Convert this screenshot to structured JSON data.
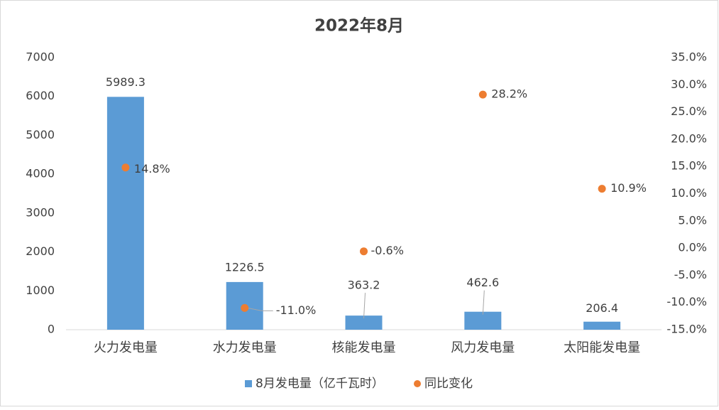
{
  "chart_data": {
    "type": "bar",
    "title": "2022年8月",
    "categories": [
      "火力发电量",
      "水力发电量",
      "核能发电量",
      "风力发电量",
      "太阳能发电量"
    ],
    "series": [
      {
        "name": "8月发电量（亿千瓦时）",
        "color": "#5b9bd5",
        "values": [
          5989.3,
          1226.5,
          363.2,
          462.6,
          206.4
        ]
      },
      {
        "name": "同比变化",
        "type": "scatter",
        "axis": "y2",
        "color": "#ed7d31",
        "values": [
          14.8,
          -11.0,
          -0.6,
          28.2,
          10.9
        ],
        "value_labels": [
          "14.8%",
          "-11.0%",
          "-0.6%",
          "28.2%",
          "10.9%"
        ]
      }
    ],
    "ylim": [
      0,
      7000
    ],
    "yticks": [
      0,
      1000,
      2000,
      3000,
      4000,
      5000,
      6000,
      7000
    ],
    "y2lim": [
      -15,
      35
    ],
    "y2ticks": [
      {
        "value": -15,
        "label": "-15.0%"
      },
      {
        "value": -10,
        "label": "-10.0%"
      },
      {
        "value": -5,
        "label": "-5.0%"
      },
      {
        "value": 0,
        "label": "0.0%"
      },
      {
        "value": 5,
        "label": "5.0%"
      },
      {
        "value": 10,
        "label": "10.0%"
      },
      {
        "value": 15,
        "label": "15.0%"
      },
      {
        "value": 20,
        "label": "20.0%"
      },
      {
        "value": 25,
        "label": "25.0%"
      },
      {
        "value": 30,
        "label": "30.0%"
      },
      {
        "value": 35,
        "label": "35.0%"
      }
    ],
    "grid": false,
    "legend": "bottom"
  }
}
